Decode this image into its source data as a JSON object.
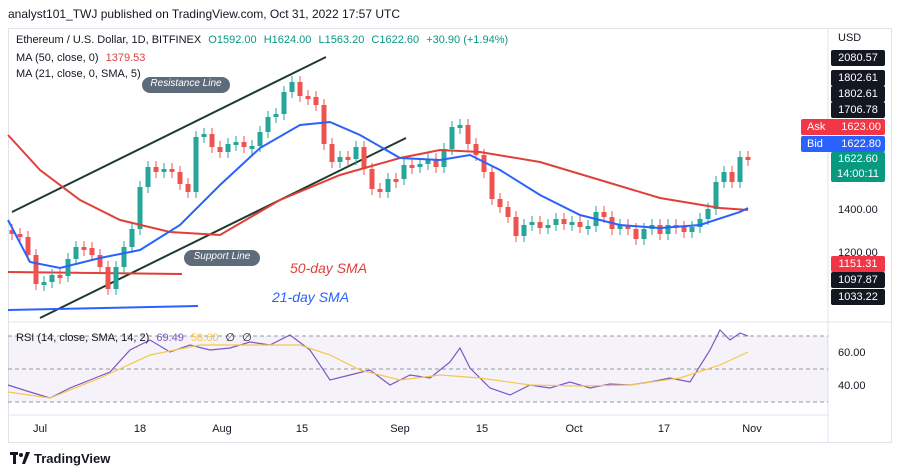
{
  "header": {
    "publisher_line": "analyst101_TWJ published on TradingView.com, Oct 31, 2022 17:57 UTC"
  },
  "legend": {
    "symbol": "Ethereum / U.S. Dollar, 1D, BITFINEX",
    "open": "O1592.00",
    "high": "H1624.00",
    "low": "L1563.20",
    "close": "C1622.60",
    "change": "+30.90 (+1.94%)",
    "ma50_label": "MA (50, close, 0)",
    "ma50_value": "1379.53",
    "ma21_label": "MA (21, close, 0, SMA, 5)",
    "rsi_label": "RSI (14, close, SMA, 14, 2)",
    "rsi_value": "69.49",
    "rsi_sma_value": "58.60",
    "rsi_extra1": "∅",
    "rsi_extra2": "∅"
  },
  "price_scale": {
    "currency": "USD",
    "ticks": [
      "1400.00",
      "1200.00"
    ],
    "rsi_ticks": [
      "60.00",
      "40.00"
    ]
  },
  "price_tags": [
    {
      "label": "2080.57",
      "color": "#131722"
    },
    {
      "label": "1802.61",
      "color": "#131722"
    },
    {
      "label": "1802.61",
      "color": "#131722"
    },
    {
      "label": "1706.78",
      "color": "#131722"
    },
    {
      "label": "Ask",
      "value": "1623.00",
      "color": "#f23645"
    },
    {
      "label": "Bid",
      "value": "1622.80",
      "color": "#2962ff"
    },
    {
      "label": "1622.60",
      "sub": "14:00:11",
      "color": "#089981"
    },
    {
      "label": "1151.31",
      "color": "#f23645"
    },
    {
      "label": "1097.87",
      "color": "#131722"
    },
    {
      "label": "1033.22",
      "color": "#131722"
    }
  ],
  "time_axis": [
    "Jul",
    "18",
    "Aug",
    "15",
    "Sep",
    "15",
    "Oct",
    "17",
    "Nov"
  ],
  "annotations": {
    "resistance": "Resistance Line",
    "support": "Support Line",
    "sma50": "50-day SMA",
    "sma21": "21-day SMA"
  },
  "footer": {
    "brand": "TradingView"
  },
  "colors": {
    "up": "#26a69a",
    "down": "#ef5350",
    "ma50": "#e0403a",
    "ma21": "#2962ff",
    "rsi": "#7e57c2",
    "rsi_sma": "#f2c94c",
    "callout": "#5d6b7a"
  },
  "chart_data": {
    "type": "line",
    "series": [
      {
        "name": "MA (50, close, 0)",
        "values": [
          1700,
          1600,
          1500,
          1380,
          1300,
          1330,
          1460,
          1560,
          1580,
          1530,
          1450,
          1400,
          1380
        ]
      },
      {
        "name": "MA (21, close, 0, SMA, 5)",
        "values": [
          1350,
          1130,
          1150,
          1320,
          1620,
          1600,
          1560,
          1350,
          1310,
          1320,
          1330,
          1350,
          1380
        ]
      }
    ]
  }
}
